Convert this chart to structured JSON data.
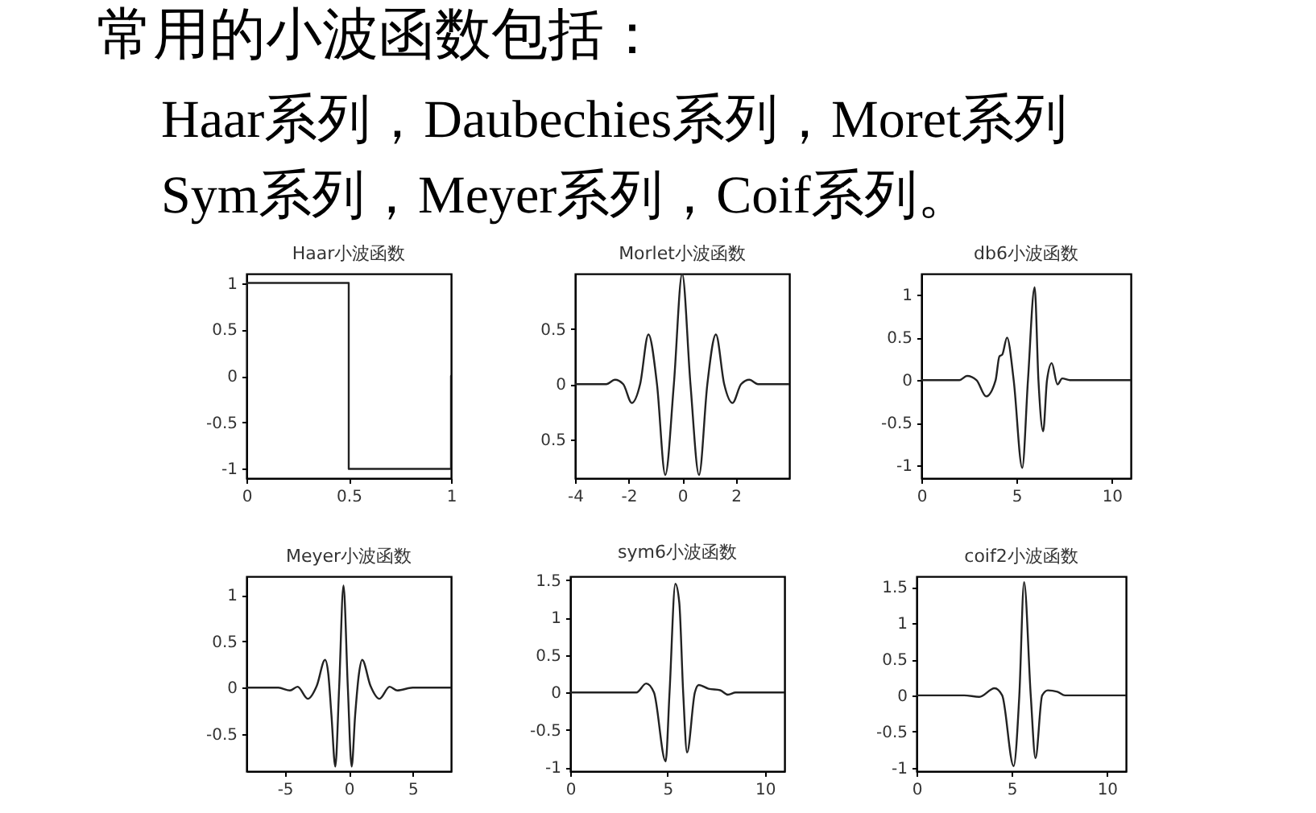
{
  "chart_data": [
    {
      "type": "other",
      "title": "常用的小波函数包括：",
      "annotations": [
        "Haar系列，Daubechies系列，Moret系列",
        "Sym系列，Meyer系列，Coif系列。"
      ]
    },
    {
      "type": "line",
      "title": "Haar小波函数",
      "x": [
        0,
        0,
        0.5,
        0.5,
        1,
        1
      ],
      "values": [
        0,
        1,
        1,
        -1,
        -1,
        0
      ],
      "color": "#222222",
      "xlim": [
        0,
        1
      ],
      "ylim": [
        -1.1,
        1.1
      ],
      "xticks": [
        0,
        0.5,
        1
      ],
      "yticks": [
        -1,
        -0.5,
        0,
        0.5,
        1
      ]
    },
    {
      "type": "line",
      "title": "Morlet小波函数",
      "x": [
        -4,
        -3.2,
        -2.83,
        -2.51,
        -2.2,
        -1.88,
        -1.57,
        -1.26,
        -0.94,
        -0.63,
        -0.31,
        0,
        0.31,
        0.63,
        0.94,
        1.26,
        1.57,
        1.88,
        2.2,
        2.51,
        2.83,
        3.2,
        4
      ],
      "values": [
        0,
        0,
        0,
        0.04,
        0,
        -0.17,
        0,
        0.45,
        0,
        -0.82,
        0,
        1,
        0,
        -0.82,
        0,
        0.45,
        0,
        -0.17,
        0,
        0.04,
        0,
        0,
        0
      ],
      "color": "#222222",
      "xlim": [
        -4,
        4
      ],
      "ylim": [
        -0.85,
        1
      ],
      "xticks": [
        -4,
        -2,
        0,
        2
      ],
      "yticks": [
        {
          "value": -0.5,
          "label": "0.5"
        },
        0,
        0.5
      ]
    },
    {
      "type": "line",
      "title": "db6小波函数",
      "x": [
        0,
        2.0,
        2.4,
        2.9,
        3.4,
        3.9,
        4.1,
        4.25,
        4.5,
        4.85,
        5.3,
        5.6,
        5.95,
        6.15,
        6.4,
        6.6,
        6.85,
        7.15,
        7.4,
        7.8,
        11
      ],
      "values": [
        0,
        0,
        0.05,
        0,
        -0.19,
        0,
        0.28,
        0.3,
        0.5,
        0,
        -1.03,
        0,
        1.09,
        0,
        -0.6,
        0,
        0.2,
        -0.05,
        0.02,
        0,
        0
      ],
      "color": "#222222",
      "xlim": [
        0,
        11
      ],
      "ylim": [
        -1.15,
        1.25
      ],
      "xticks": [
        0,
        5,
        10
      ],
      "yticks": [
        -1,
        -0.5,
        0,
        0.5,
        1
      ]
    },
    {
      "type": "line",
      "title": "Meyer小波函数",
      "x": [
        -8,
        -5.5,
        -4.6,
        -4.0,
        -3.2,
        -2.5,
        -1.85,
        -1.6,
        -1.35,
        -1.05,
        -0.75,
        -0.41,
        -0.07,
        0.23,
        0.5,
        0.8,
        1.05,
        1.7,
        2.4,
        3.2,
        3.8,
        5,
        8
      ],
      "values": [
        0,
        0,
        -0.03,
        0.01,
        -0.12,
        0.02,
        0.3,
        0.15,
        -0.3,
        -0.85,
        0,
        1.1,
        0,
        -0.85,
        -0.3,
        0.15,
        0.3,
        0.02,
        -0.12,
        0.01,
        -0.03,
        0,
        0
      ],
      "color": "#222222",
      "xlim": [
        -8,
        8
      ],
      "ylim": [
        -0.9,
        1.2
      ],
      "xticks": [
        -5,
        0,
        5
      ],
      "yticks": [
        -0.5,
        0,
        0.5,
        1
      ]
    },
    {
      "type": "line",
      "title": "sym6小波函数",
      "x": [
        0,
        3.4,
        3.9,
        4.3,
        4.9,
        5.1,
        5.4,
        5.6,
        5.8,
        6.0,
        6.4,
        6.6,
        7.1,
        7.7,
        8.1,
        8.5,
        11
      ],
      "values": [
        0,
        0,
        0.12,
        0,
        -0.92,
        0,
        1.45,
        1.2,
        0,
        -0.8,
        0,
        0.1,
        0.05,
        0.03,
        -0.03,
        0,
        0
      ],
      "color": "#222222",
      "xlim": [
        0,
        11
      ],
      "ylim": [
        -1.05,
        1.55
      ],
      "xticks": [
        0,
        5,
        10
      ],
      "yticks": [
        -1,
        -0.5,
        0,
        0.5,
        1,
        1.5
      ]
    },
    {
      "type": "line",
      "title": "coif2小波函数",
      "x": [
        0,
        2.5,
        3.3,
        4.1,
        4.5,
        5.1,
        5.4,
        5.65,
        6.0,
        6.25,
        6.6,
        6.9,
        7.4,
        7.8,
        11
      ],
      "values": [
        0,
        0,
        -0.02,
        0.1,
        0,
        -0.98,
        0,
        1.57,
        0,
        -0.87,
        0,
        0.07,
        0.05,
        0,
        0
      ],
      "color": "#222222",
      "xlim": [
        0,
        11
      ],
      "ylim": [
        -1.05,
        1.65
      ],
      "xticks": [
        0,
        5,
        10
      ],
      "yticks": [
        -1,
        -0.5,
        0,
        0.5,
        1,
        1.5
      ]
    }
  ]
}
